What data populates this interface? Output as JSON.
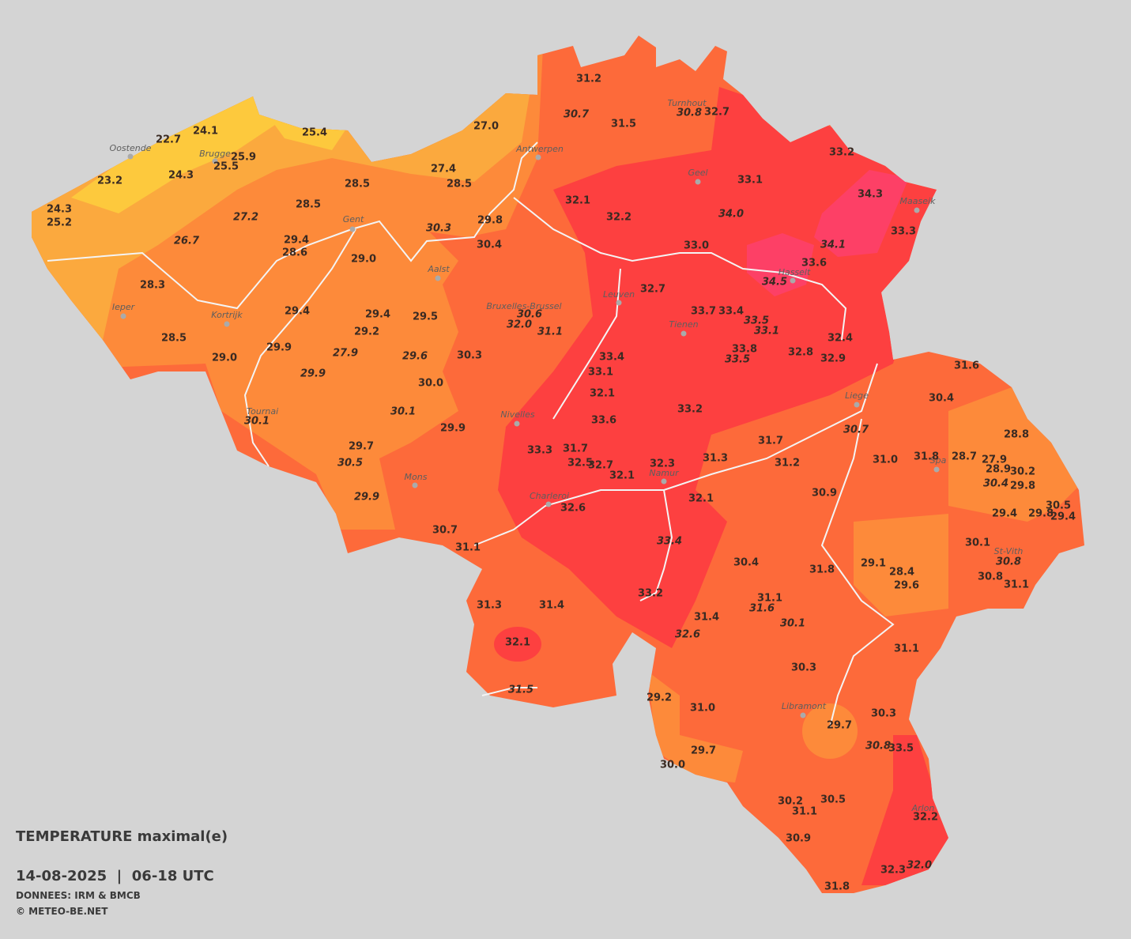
{
  "header": {
    "title": "TEMPERATURE maximal(e)",
    "period": "14-08-2025  |  06-18 UTC",
    "source": "DONNEES: IRM & BMCB",
    "copyright": "© METEO-BE.NET"
  },
  "cities": [
    "Oostende",
    "Brugge",
    "Antwerpen",
    "Turnhout",
    "Geel",
    "Maaseik",
    "Gent",
    "Aalst",
    "Hasselt",
    "Leuven",
    "Ieper",
    "Kortrijk",
    "Bruxelles-Brussel",
    "Tienen",
    "Liege",
    "Tournai",
    "Nivelles",
    "Spa",
    "Mons",
    "Namur",
    "Charleroi",
    "St-Vith",
    "Libramont",
    "Arlon"
  ],
  "readings": [
    "31.2",
    "31.5",
    "32.7",
    "33.2",
    "33.1",
    "34.3",
    "33.3",
    "32.1",
    "32.2",
    "33.0",
    "33.6",
    "32.7",
    "33.7",
    "33.4",
    "32.4",
    "32.9",
    "32.8",
    "33.8",
    "33.4",
    "33.1",
    "32.1",
    "33.6",
    "33.2",
    "33.3",
    "31.7",
    "32.5",
    "32.7",
    "32.1",
    "32.3",
    "31.3",
    "31.7",
    "31.2",
    "32.1",
    "32.6",
    "31.6",
    "30.4",
    "28.8",
    "31.0",
    "31.8",
    "28.7",
    "27.9",
    "28.9",
    "30.2",
    "29.8",
    "30.5",
    "29.8",
    "29.4",
    "29.4",
    "30.9",
    "30.1",
    "29.1",
    "28.4",
    "29.6",
    "30.8",
    "31.1",
    "31.8",
    "30.4",
    "31.1",
    "31.4",
    "31.1",
    "30.3",
    "29.2",
    "31.0",
    "30.3",
    "29.7",
    "33.5",
    "29.7",
    "30.0",
    "30.2",
    "30.5",
    "31.1",
    "32.2",
    "30.9",
    "32.3",
    "31.8",
    "33.2",
    "31.3",
    "31.4",
    "32.1",
    "30.7",
    "31.1",
    "29.8",
    "30.4",
    "27.4",
    "28.5",
    "27.0",
    "28.5",
    "28.5",
    "25.4",
    "24.1",
    "22.7",
    "25.9",
    "25.5",
    "24.3",
    "23.2",
    "24.3",
    "25.2",
    "29.4",
    "28.6",
    "29.0",
    "28.3",
    "29.4",
    "29.4",
    "29.2",
    "29.5",
    "28.5",
    "29.9",
    "29.0",
    "30.3",
    "30.0",
    "29.9",
    "29.7"
  ],
  "readings_italic": [
    "30.7",
    "30.8",
    "34.0",
    "34.1",
    "34.5",
    "33.5",
    "33.1",
    "33.5",
    "30.6",
    "32.0",
    "31.1",
    "30.3",
    "27.2",
    "26.7",
    "27.9",
    "29.6",
    "29.9",
    "30.1",
    "30.1",
    "30.5",
    "29.9",
    "30.7",
    "30.4",
    "30.8",
    "33.4",
    "31.6",
    "30.1",
    "32.6",
    "31.5",
    "30.8",
    "32.0"
  ]
}
